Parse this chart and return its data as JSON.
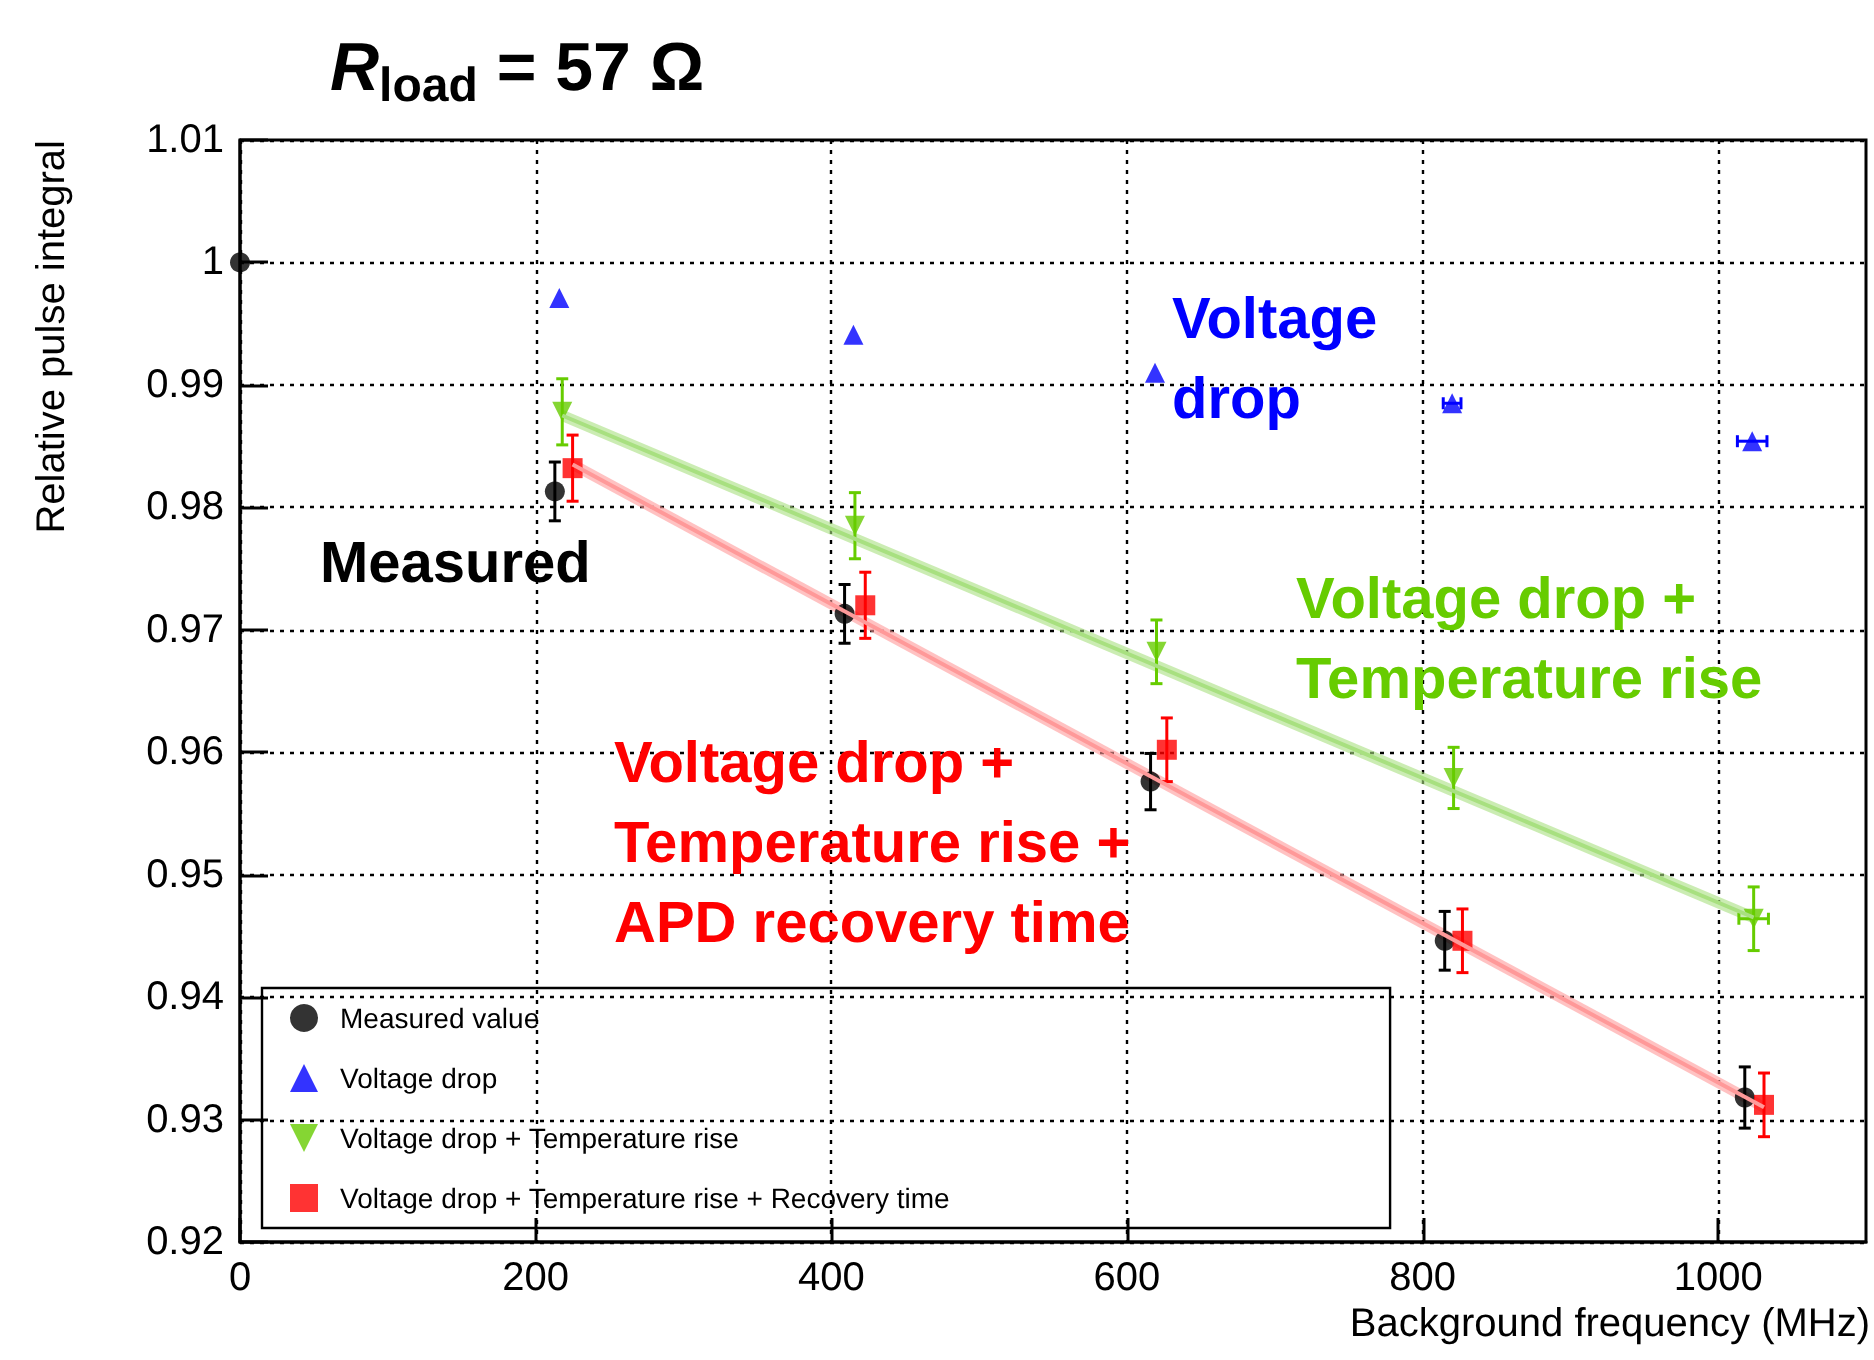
{
  "chart_data": {
    "type": "scatter",
    "title": "R$_{load}$ = 57 Ω",
    "xlabel": "Background frequency (MHz)",
    "ylabel": "Relative pulse integral",
    "xlim": [
      0,
      1100
    ],
    "xticks": [
      0,
      200,
      400,
      600,
      800,
      1000
    ],
    "ylim": [
      0.92,
      1.01
    ],
    "yticks": [
      0.92,
      0.93,
      0.94,
      0.95,
      0.96,
      0.97,
      0.98,
      0.99,
      1,
      1.01
    ],
    "grid": true,
    "legend": "bottom left",
    "series": [
      {
        "name": "Measured value",
        "marker": "circle",
        "color": "#000000",
        "x": [
          0,
          213,
          409,
          616,
          815,
          1018
        ],
        "values": [
          1.0,
          0.9813,
          0.9713,
          0.9576,
          0.9446,
          0.9318
        ],
        "errors": [
          null,
          0.0024,
          0.0024,
          0.0023,
          0.0024,
          0.0025
        ]
      },
      {
        "name": "Voltage drop",
        "marker": "triangle",
        "color": "#0000ff",
        "x": [
          216,
          415,
          619,
          820,
          1023
        ],
        "values": [
          0.9971,
          0.9941,
          0.991,
          0.9885,
          0.9854
        ],
        "xerrors": [
          null,
          null,
          null,
          6,
          10
        ]
      },
      {
        "name": "Voltage drop + Temperature rise",
        "marker": "triangle-down",
        "color": "#66cc00",
        "x": [
          218,
          416,
          620,
          821,
          1024
        ],
        "values": [
          0.9878,
          0.9785,
          0.9682,
          0.9579,
          0.9464
        ],
        "errors": [
          0.0027,
          0.0027,
          0.0026,
          0.0025,
          0.0026
        ],
        "xerrors": [
          null,
          null,
          null,
          null,
          10
        ]
      },
      {
        "name": "Voltage drop + Temperature rise + Recovery time",
        "marker": "square",
        "color": "#ff0000",
        "x": [
          225,
          423,
          627,
          827,
          1031
        ],
        "values": [
          0.9832,
          0.972,
          0.9602,
          0.9446,
          0.9312
        ],
        "errors": [
          0.0027,
          0.0027,
          0.0026,
          0.0026,
          0.0026
        ]
      },
      {
        "type": "line",
        "color": "#a8e080",
        "x": [
          218,
          1024
        ],
        "values": [
          0.9875,
          0.9465
        ],
        "lower": [
          0.987,
          0.946
        ],
        "upper": [
          0.988,
          0.947
        ]
      },
      {
        "type": "line",
        "color": "#ff9999",
        "x": [
          225,
          1031
        ],
        "values": [
          0.9835,
          0.931
        ],
        "lower": [
          0.983,
          0.9305
        ],
        "upper": [
          0.984,
          0.9315
        ]
      }
    ],
    "annotations": [
      "Measured",
      "Voltage\ndrop",
      "Voltage drop +\nTemperature rise",
      "Voltage drop +\nTemperature rise +\nAPD recovery time"
    ]
  }
}
